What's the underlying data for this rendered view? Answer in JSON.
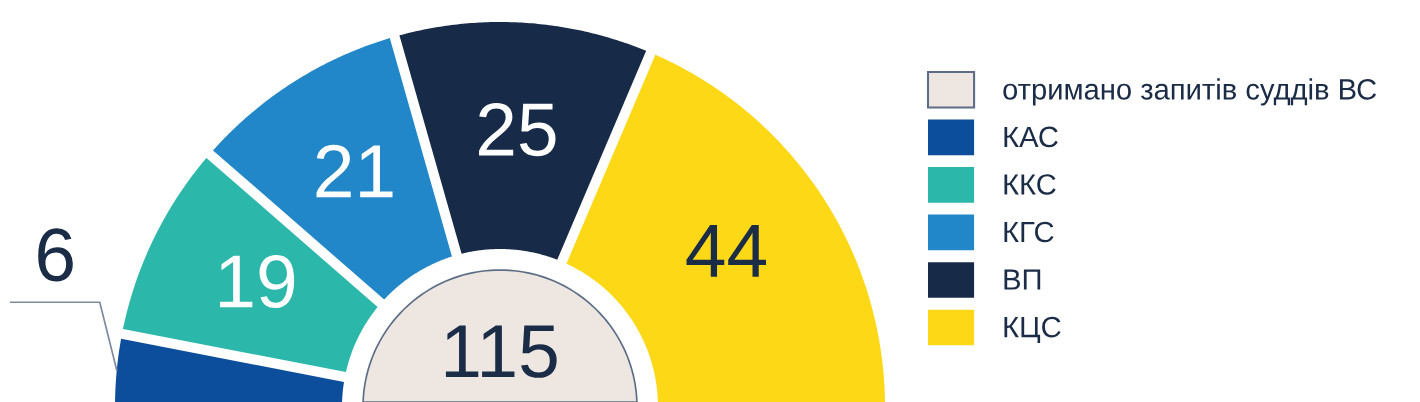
{
  "chart_data": {
    "type": "donut",
    "categories": [
      "отримано запитів суддів ВС",
      "КАС",
      "ККС",
      "КГС",
      "ВП",
      "КЦС"
    ],
    "colors": [
      "#ede6e1",
      "#0d4e9c",
      "#2bb7aa",
      "#2187c8",
      "#172b48",
      "#fcd817"
    ],
    "series": [
      {
        "type": "pie",
        "values": [
          115,
          null,
          null,
          null,
          null,
          null
        ]
      },
      {
        "values": [
          null,
          6,
          19,
          21,
          25,
          44
        ]
      }
    ],
    "data_labels": true,
    "legend": "right"
  }
}
